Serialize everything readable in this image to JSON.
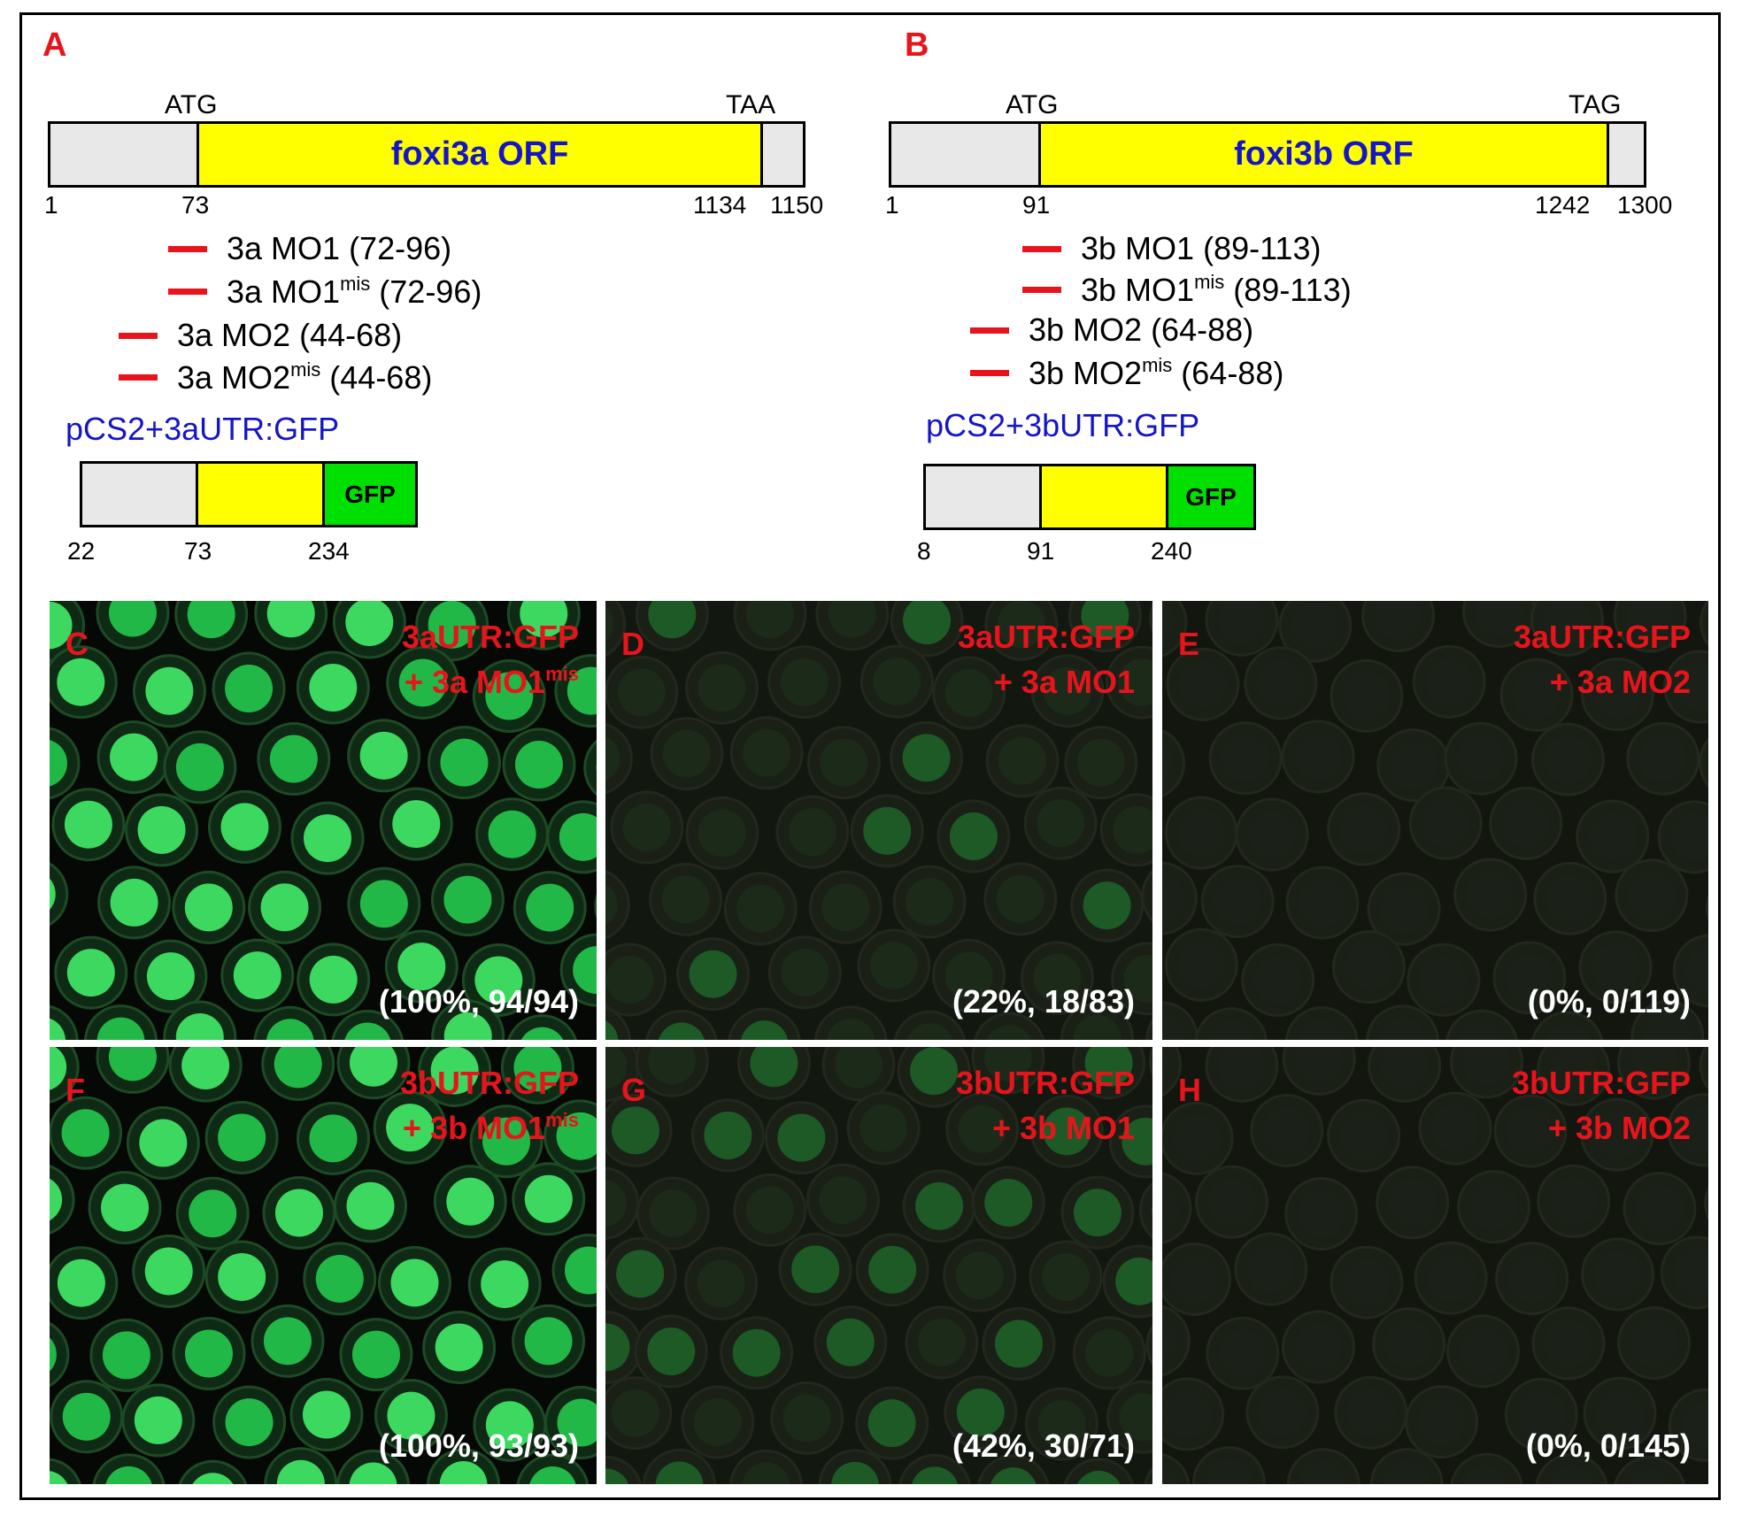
{
  "panels": {
    "A": {
      "letter": "A",
      "start_codon": "ATG",
      "stop_codon": "TAA",
      "orf_label": "foxi3a ORF",
      "coords": [
        "1",
        "73",
        "1134",
        "1150"
      ],
      "morpholinos": [
        {
          "name": "3a MO1",
          "sup": "",
          "range": " (72-96)"
        },
        {
          "name": "3a MO1",
          "sup": "mis",
          "range": " (72-96)"
        },
        {
          "name": "3a MO2",
          "sup": "",
          "range": " (44-68)"
        },
        {
          "name": "3a MO2",
          "sup": "mis",
          "range": " (44-68)"
        }
      ],
      "construct_title": "pCS2+3aUTR:GFP",
      "construct_gfp": "GFP",
      "construct_coords": [
        "22",
        "73",
        "234"
      ]
    },
    "B": {
      "letter": "B",
      "start_codon": "ATG",
      "stop_codon": "TAG",
      "orf_label": "foxi3b ORF",
      "coords": [
        "1",
        "91",
        "1242",
        "1300"
      ],
      "morpholinos": [
        {
          "name": "3b MO1",
          "sup": "",
          "range": " (89-113)"
        },
        {
          "name": "3b MO1",
          "sup": "mis",
          "range": " (89-113)"
        },
        {
          "name": "3b MO2",
          "sup": "",
          "range": " (64-88)"
        },
        {
          "name": "3b MO2",
          "sup": "mis",
          "range": " (64-88)"
        }
      ],
      "construct_title": "pCS2+3bUTR:GFP",
      "construct_gfp": "GFP",
      "construct_coords": [
        "8",
        "91",
        "240"
      ]
    }
  },
  "photos": [
    {
      "letter": "C",
      "line1": "3aUTR:GFP",
      "line2": "+ 3a MO1",
      "sup": "mis",
      "stat": "(100%, 94/94)",
      "brightness": 1.0
    },
    {
      "letter": "D",
      "line1": "3aUTR:GFP",
      "line2": "+ 3a MO1",
      "sup": "",
      "stat": "(22%, 18/83)",
      "brightness": 0.22
    },
    {
      "letter": "E",
      "line1": "3aUTR:GFP",
      "line2": "+ 3a MO2",
      "sup": "",
      "stat": "(0%, 0/119)",
      "brightness": 0.0
    },
    {
      "letter": "F",
      "line1": "3bUTR:GFP",
      "line2": "+ 3b MO1",
      "sup": "mis",
      "stat": "(100%, 93/93)",
      "brightness": 1.0
    },
    {
      "letter": "G",
      "line1": "3bUTR:GFP",
      "line2": "+ 3b MO1",
      "sup": "",
      "stat": "(42%, 30/71)",
      "brightness": 0.42
    },
    {
      "letter": "H",
      "line1": "3bUTR:GFP",
      "line2": "+ 3b MO2",
      "sup": "",
      "stat": "(0%, 0/145)",
      "brightness": 0.0
    }
  ],
  "colors": {
    "label_red": "#e8141c",
    "orf_blue": "#1515c8",
    "orf_yellow": "#ffff00",
    "utr_grey": "#e8e8e8",
    "gfp_green": "#00e000"
  }
}
